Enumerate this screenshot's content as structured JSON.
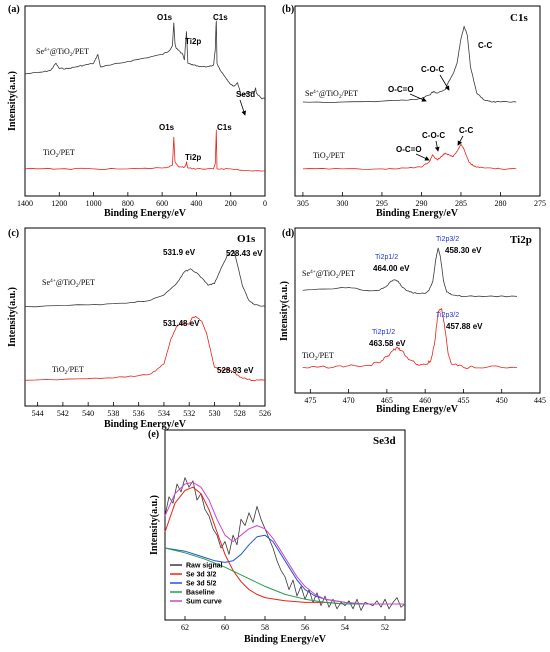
{
  "chart_data": [
    {
      "id": "a",
      "panel_letter": "(a)",
      "type": "line",
      "xlabel": "Binding Energy/eV",
      "ylabel": "Intensity(a.u.)",
      "xlim": [
        1400,
        0
      ],
      "ylim": [
        0,
        100
      ],
      "xticks": [
        1400,
        1200,
        1000,
        800,
        600,
        400,
        200,
        0
      ],
      "series": [
        {
          "name": "Se4+@TiO2/PET",
          "color": "#3a3a3a",
          "x": [
            1400,
            1300,
            1250,
            1220,
            1200,
            1150,
            1100,
            1050,
            1000,
            975,
            960,
            900,
            800,
            700,
            600,
            560,
            540,
            532,
            525,
            520,
            500,
            480,
            470,
            462,
            458,
            450,
            420,
            380,
            340,
            300,
            290,
            286,
            284,
            280,
            260,
            230,
            200,
            180,
            160,
            140,
            100,
            60,
            55,
            50,
            20,
            0
          ],
          "y": [
            66,
            67,
            68,
            72,
            69,
            69,
            70,
            71,
            72,
            77,
            70,
            71,
            73,
            75,
            77,
            79,
            82,
            95,
            83,
            81,
            79,
            77,
            74,
            85,
            90,
            72,
            71,
            70,
            70,
            71,
            80,
            93,
            96,
            72,
            68,
            64,
            60,
            59,
            61,
            54,
            55,
            56,
            58,
            55,
            52,
            52
          ]
        },
        {
          "name": "TiO2/PET",
          "color": "#e8241b",
          "x": [
            1400,
            1200,
            1000,
            800,
            600,
            560,
            540,
            532,
            525,
            500,
            470,
            462,
            458,
            450,
            400,
            300,
            290,
            286,
            284,
            280,
            200,
            100,
            0
          ],
          "y": [
            12,
            12,
            12,
            12,
            12.5,
            13,
            14,
            30,
            16,
            13,
            13,
            14,
            16,
            12.5,
            12,
            12,
            15,
            28,
            34,
            12,
            12,
            11,
            11
          ]
        }
      ],
      "annotations": [
        "O1s",
        "C1s",
        "Ti2p",
        "Se3d",
        "O1s",
        "Ti2p",
        "C1s"
      ]
    },
    {
      "id": "b",
      "panel_letter": "(b)",
      "type": "line",
      "title": "C1s",
      "xlabel": "Binding Energy/eV",
      "ylabel": "",
      "xlim": [
        306,
        275
      ],
      "ylim": [
        0,
        100
      ],
      "xticks": [
        305,
        300,
        295,
        290,
        285,
        280,
        275
      ],
      "series": [
        {
          "name": "Se4+@TiO2/PET",
          "color": "#3a3a3a",
          "x": [
            305,
            300,
            295,
            292,
            290,
            289,
            288.5,
            288,
            287,
            286.5,
            286,
            285.5,
            285,
            284.6,
            284.2,
            283.8,
            283,
            282,
            281,
            280,
            278
          ],
          "y": [
            50,
            50,
            50.5,
            51,
            52,
            54,
            56,
            55,
            57,
            62,
            66,
            72,
            86,
            93,
            88,
            70,
            55,
            51,
            50,
            50,
            50
          ]
        },
        {
          "name": "TiO2/PET",
          "color": "#e8241b",
          "x": [
            305,
            300,
            295,
            292,
            290,
            289,
            288.6,
            288,
            287.5,
            287,
            286.5,
            286,
            285.5,
            285,
            284.6,
            284,
            283.5,
            283,
            282,
            280,
            278
          ],
          "y": [
            12,
            12,
            12,
            12.5,
            13,
            16,
            20,
            17,
            19,
            21,
            20,
            19,
            22,
            26,
            23,
            16,
            14,
            13,
            12.5,
            12,
            12
          ]
        }
      ],
      "annotations": [
        "C-C",
        "C-O-C",
        "O-C=O",
        "C-O-C",
        "C-C",
        "O-C=O"
      ]
    },
    {
      "id": "c",
      "panel_letter": "(c)",
      "type": "line",
      "title": "O1s",
      "xlabel": "Binding Energy/eV",
      "ylabel": "Intensity(a.u.)",
      "xlim": [
        545,
        526
      ],
      "ylim": [
        0,
        100
      ],
      "xticks": [
        544,
        542,
        540,
        538,
        536,
        534,
        532,
        530,
        528,
        526
      ],
      "series": [
        {
          "name": "Se4+@TiO2/PET",
          "color": "#3a3a3a",
          "x": [
            545,
            540,
            537,
            535,
            534,
            533,
            532.4,
            531.9,
            531.2,
            530.5,
            530,
            529.5,
            529,
            528.6,
            528.43,
            528.2,
            527.8,
            527.3,
            526.8,
            526
          ],
          "y": [
            57,
            58,
            59,
            61,
            64,
            71,
            78,
            80,
            76,
            70,
            71,
            80,
            88,
            91,
            90,
            83,
            70,
            61,
            58,
            57
          ]
        },
        {
          "name": "TiO2/PET",
          "color": "#e8241b",
          "x": [
            545,
            540,
            537,
            535,
            534,
            533.5,
            533,
            532.5,
            532,
            531.8,
            531.48,
            531,
            530.6,
            530.3,
            530,
            529.5,
            528.93,
            528.5,
            528,
            527.5,
            527,
            526
          ],
          "y": [
            12,
            13,
            14,
            16,
            22,
            36,
            45,
            47,
            46,
            50,
            51,
            48,
            40,
            30,
            20,
            18,
            19,
            17,
            14,
            13,
            12,
            12
          ]
        }
      ],
      "annotations": [
        "531.9 eV",
        "528.43 eV",
        "531.48 eV",
        "528.93 eV"
      ]
    },
    {
      "id": "d",
      "panel_letter": "(d)",
      "type": "line",
      "title": "Ti2p",
      "xlabel": "Binding Energy/eV",
      "ylabel": "Intensity(a.u.)",
      "xlim": [
        477,
        445
      ],
      "ylim": [
        0,
        100
      ],
      "xticks": [
        475,
        470,
        465,
        460,
        455,
        450,
        445
      ],
      "series": [
        {
          "name": "Se4+@TiO2/PET",
          "color": "#3a3a3a",
          "x": [
            476,
            472,
            470,
            468,
            466,
            465,
            464.5,
            464.0,
            463.5,
            463,
            462,
            461,
            460,
            459.5,
            459,
            458.6,
            458.3,
            458,
            457.6,
            457.2,
            456.5,
            455,
            452,
            448
          ],
          "y": [
            64,
            65,
            66,
            64,
            64,
            67,
            70,
            71,
            70,
            66,
            63,
            62,
            62,
            64,
            70,
            85,
            92,
            86,
            70,
            63,
            61,
            60,
            60,
            60
          ]
        },
        {
          "name": "TiO2/PET",
          "color": "#e8241b",
          "x": [
            476,
            472,
            470,
            468,
            466,
            465,
            464.2,
            463.58,
            463,
            462,
            461,
            460,
            459.3,
            458.8,
            458.3,
            457.88,
            457.5,
            457,
            456.5,
            455,
            452,
            448
          ],
          "y": [
            13,
            13,
            14,
            14,
            16,
            20,
            24,
            26,
            24,
            18,
            15,
            15,
            17,
            28,
            50,
            52,
            42,
            22,
            15,
            13,
            13,
            13
          ]
        }
      ],
      "annotations": [
        "Ti2p1/2",
        "464.00 eV",
        "Ti2p3/2",
        "458.30 eV",
        "Ti2p1/2",
        "463.58 eV",
        "Ti2p3/2",
        "457.88 eV"
      ]
    },
    {
      "id": "e",
      "panel_letter": "(e)",
      "type": "line",
      "title": "Se3d",
      "xlabel": "Binding Energy/eV",
      "ylabel": "Intensity(a.u.)",
      "xlim": [
        63,
        51
      ],
      "ylim": [
        0,
        100
      ],
      "xticks": [
        62,
        60,
        58,
        56,
        54,
        52
      ],
      "series": [
        {
          "name": "Raw signal",
          "color": "#3a3a3a",
          "x": [
            63,
            62.8,
            62.6,
            62.4,
            62.2,
            62.0,
            61.8,
            61.6,
            61.4,
            61.2,
            61.0,
            60.8,
            60.6,
            60.4,
            60.2,
            60.0,
            59.8,
            59.6,
            59.4,
            59.2,
            59.0,
            58.8,
            58.6,
            58.4,
            58.2,
            58.0,
            57.8,
            57.6,
            57.4,
            57.2,
            57.0,
            56.8,
            56.6,
            56.4,
            56.2,
            56.0,
            55.8,
            55.6,
            55.4,
            55.2,
            55.0,
            54.8,
            54.6,
            54.4,
            54.2,
            54.0,
            53.8,
            53.6,
            53.4,
            53.2,
            53.0,
            52.8,
            52.6,
            52.4,
            52.2,
            52.0,
            51.8,
            51.6,
            51.4,
            51.2,
            51.0
          ],
          "y": [
            60,
            72,
            68,
            80,
            75,
            84,
            78,
            82,
            70,
            74,
            64,
            60,
            52,
            48,
            40,
            44,
            36,
            48,
            42,
            58,
            54,
            62,
            56,
            66,
            58,
            52,
            46,
            40,
            32,
            26,
            22,
            14,
            20,
            10,
            16,
            8,
            14,
            6,
            12,
            4,
            10,
            3,
            8,
            2,
            6,
            4,
            7,
            2,
            8,
            1,
            6,
            5,
            4,
            7,
            3,
            8,
            2,
            6,
            9,
            3,
            5
          ]
        },
        {
          "name": "Se 3d 3/2",
          "color": "#e8241b",
          "x": [
            63,
            62.5,
            62,
            61.6,
            61.2,
            60.8,
            60.4,
            60,
            59.6,
            59.2,
            58.8,
            58.4,
            58,
            57.5,
            57,
            56,
            55,
            54,
            53,
            52,
            51
          ],
          "y": [
            50,
            68,
            76,
            78,
            74,
            64,
            50,
            36,
            26,
            19,
            14,
            11,
            9,
            8,
            7,
            6,
            6,
            5,
            5,
            5,
            5
          ]
        },
        {
          "name": "Se 3d 5/2",
          "color": "#2255d0",
          "x": [
            63,
            62.5,
            62,
            61.5,
            61,
            60.5,
            60,
            59.6,
            59.2,
            58.8,
            58.4,
            58,
            57.6,
            57.2,
            56.8,
            56.4,
            56,
            55.5,
            55,
            54,
            53,
            52,
            51
          ],
          "y": [
            40,
            39,
            38,
            36,
            34,
            32,
            31,
            32,
            36,
            42,
            47,
            48,
            44,
            36,
            28,
            20,
            14,
            10,
            8,
            6,
            5,
            5,
            5
          ]
        },
        {
          "name": "Baseline",
          "color": "#22a04a",
          "x": [
            63,
            62,
            61,
            60,
            59,
            58,
            57,
            56,
            55,
            54,
            53,
            52,
            51
          ],
          "y": [
            40,
            37,
            33,
            28,
            22,
            16,
            11,
            8,
            6,
            5,
            5,
            5,
            5
          ]
        },
        {
          "name": "Sum curve",
          "color": "#cc44cc",
          "x": [
            63,
            62.5,
            62,
            61.6,
            61.2,
            60.8,
            60.4,
            60,
            59.6,
            59.2,
            58.8,
            58.4,
            58,
            57.6,
            57.2,
            56.8,
            56.4,
            56,
            55.5,
            55,
            54,
            53,
            52,
            51
          ],
          "y": [
            60,
            74,
            80,
            81,
            78,
            70,
            58,
            48,
            44,
            48,
            52,
            54,
            52,
            46,
            38,
            30,
            22,
            16,
            11,
            8,
            6,
            5,
            5,
            5
          ]
        }
      ]
    }
  ],
  "labels": {
    "a": {
      "o1s_top": "O1s",
      "c1s_top": "C1s",
      "ti2p_top": "Ti2p",
      "se3d_top": "Se3d",
      "o1s_bot": "O1s",
      "ti2p_bot": "Ti2p",
      "c1s_bot": "C1s",
      "series_top_pre": "Se",
      "series_top_sup": "4+",
      "series_top_post": "@TiO",
      "series_top_sub": "2",
      "series_top_end": "/PET",
      "series_bot_pre": "TiO",
      "series_bot_sub": "2",
      "series_bot_end": "/PET"
    },
    "b": {
      "cc_top": "C-C",
      "coc_top": "C-O-C",
      "oco_top": "O-C=O",
      "coc_bot": "C-O-C",
      "cc_bot": "C-C",
      "oco_bot": "O-C=O"
    },
    "c": {
      "p1_top": "531.9 eV",
      "p2_top": "528.43 eV",
      "p1_bot": "531.48 eV",
      "p2_bot": "528.93 eV"
    },
    "d": {
      "t1_top": "Ti2p1/2",
      "v1_top": "464.00 eV",
      "t2_top": "Ti2p3/2",
      "v2_top": "458.30 eV",
      "t1_bot": "Ti2p1/2",
      "v1_bot": "463.58 eV",
      "t2_bot": "Ti2p3/2",
      "v2_bot": "457.88 eV"
    }
  },
  "legend_e": [
    "Raw signal",
    "Se 3d 3/2",
    "Se 3d 5/2",
    "Baseline",
    "Sum curve"
  ],
  "colors": {
    "gray": "#3a3a3a",
    "red": "#e8241b",
    "blue": "#2255d0",
    "green": "#22a04a",
    "magenta": "#cc44cc",
    "annotation_blue": "#2233cc"
  }
}
